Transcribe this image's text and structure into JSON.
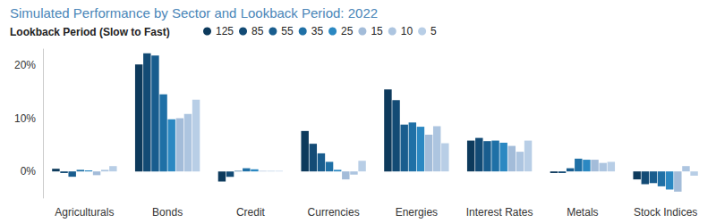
{
  "chart_data": {
    "type": "bar",
    "title": "Simulated Performance by Sector and Lookback Period: 2022",
    "legend_title": "Lookback Period (Slow to Fast)",
    "categories": [
      "Agriculturals",
      "Bonds",
      "Credit",
      "Currencies",
      "Energies",
      "Interest Rates",
      "Metals",
      "Stock Indices"
    ],
    "series": [
      {
        "name": "125",
        "color": "#0d3a5c",
        "values": [
          0.5,
          20.1,
          -1.9,
          7.6,
          15.4,
          5.8,
          -0.3,
          -1.5
        ]
      },
      {
        "name": "85",
        "color": "#134b75",
        "values": [
          -0.3,
          22.2,
          -1.0,
          5.2,
          13.4,
          6.3,
          -0.3,
          -2.4
        ]
      },
      {
        "name": "55",
        "color": "#195d8e",
        "values": [
          -1.0,
          21.8,
          0.1,
          3.4,
          8.8,
          5.7,
          0.6,
          -2.2
        ]
      },
      {
        "name": "35",
        "color": "#1f70a6",
        "values": [
          0.3,
          14.5,
          0.6,
          1.8,
          9.2,
          5.8,
          2.4,
          -2.8
        ]
      },
      {
        "name": "25",
        "color": "#2b88c2",
        "values": [
          0.2,
          9.8,
          0.4,
          0.3,
          8.4,
          5.4,
          2.2,
          -3.4
        ]
      },
      {
        "name": "15",
        "color": "#a3bcd9",
        "values": [
          -0.7,
          10.0,
          0.1,
          -1.5,
          6.9,
          4.8,
          2.2,
          -3.8
        ]
      },
      {
        "name": "10",
        "color": "#adc5e0",
        "values": [
          0.3,
          10.8,
          0.1,
          -0.6,
          8.5,
          3.7,
          1.6,
          1.0
        ]
      },
      {
        "name": "5",
        "color": "#b8cee6",
        "values": [
          1.0,
          13.5,
          0.1,
          2.0,
          5.3,
          5.8,
          1.8,
          -0.8
        ]
      }
    ],
    "ylim": [
      -5,
      23
    ],
    "yticks": [
      {
        "value": 0,
        "label": "0%"
      },
      {
        "value": 10,
        "label": "10%"
      },
      {
        "value": 20,
        "label": "20%"
      }
    ],
    "grid": false,
    "legend": "top-left"
  }
}
